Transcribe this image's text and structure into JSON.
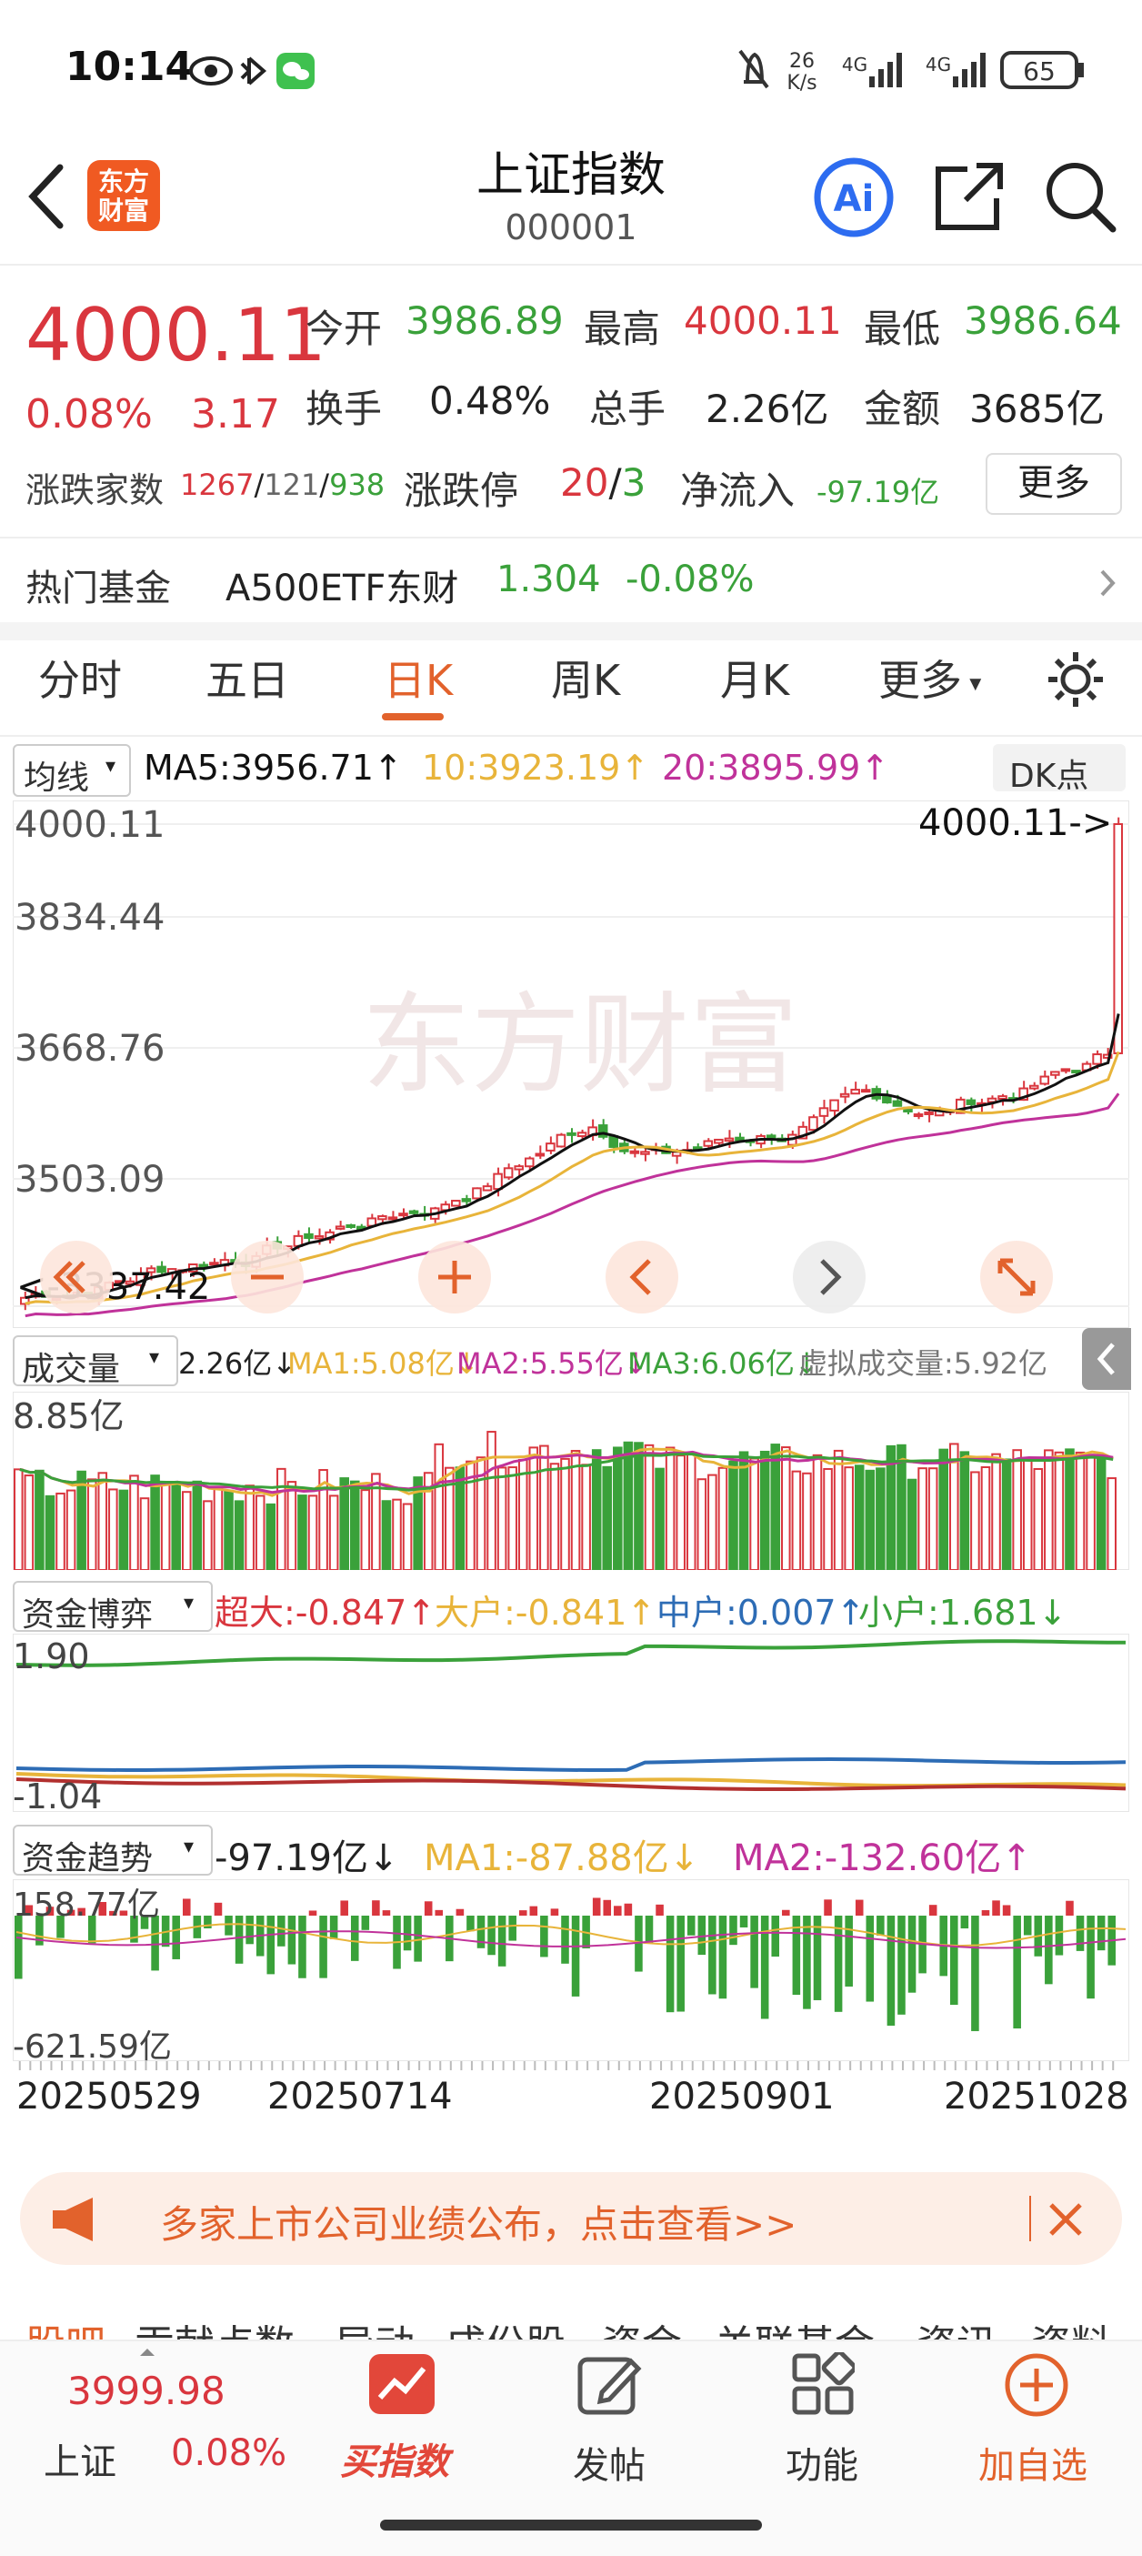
{
  "status": {
    "time": "10:14",
    "net_speed_top": "26",
    "net_speed_bottom": "K/s",
    "net1": "4G",
    "net2": "4G",
    "battery": "65"
  },
  "header": {
    "title": "上证指数",
    "code": "000001",
    "logo_top": "东方",
    "logo_bottom": "财富",
    "ai_label": "Ai"
  },
  "quote": {
    "price": "4000.11",
    "pct": "0.08%",
    "chg": "3.17",
    "open_label": "今开",
    "open": "3986.89",
    "high_label": "最高",
    "high": "4000.11",
    "low_label": "最低",
    "low": "3986.64",
    "turnover_label": "换手",
    "turnover": "0.48%",
    "volume_label": "总手",
    "volume": "2.26亿",
    "amount_label": "金额",
    "amount": "3685亿",
    "breadth_label": "涨跌家数",
    "up": "1267",
    "flat": "121",
    "down": "938",
    "limit_label": "涨跌停",
    "limit_up": "20",
    "limit_down": "3",
    "netflow_label": "净流入",
    "netflow": "-97.19亿",
    "more": "更多"
  },
  "fund": {
    "label": "热门基金",
    "name": "A500ETF东财",
    "price": "1.304",
    "change": "-0.08%"
  },
  "tabs": [
    "分时",
    "五日",
    "日K",
    "周K",
    "月K",
    "更多"
  ],
  "main_chart": {
    "ma_select": "均线",
    "ma5": "MA5:3956.71↑",
    "ma10": "10:3923.19↑",
    "ma20": "20:3895.99↑",
    "dk": "DK点",
    "y_ticks": [
      "4000.11",
      "3834.44",
      "3668.76",
      "3503.09",
      "3337.42"
    ],
    "high_marker": "4000.11->",
    "low_marker": "<-3337.42",
    "watermark": "东方财富"
  },
  "volume_chart": {
    "select": "成交量",
    "current": "2.26亿↓",
    "ma1": "MA1:5.08亿↓",
    "ma2": "MA2:5.55亿↓",
    "ma3": "MA3:6.06亿↓",
    "virtual": "虚拟成交量:5.92亿",
    "y_max": "8.85亿"
  },
  "fund_game": {
    "select": "资金博弈",
    "super": "超大:-0.847↑",
    "big": "大户:-0.841↑",
    "mid": "中户:0.007↑",
    "small": "小户:1.681↓",
    "y_max": "1.90",
    "y_min": "-1.04"
  },
  "fund_trend": {
    "select": "资金趋势",
    "current": "-97.19亿↓",
    "ma1": "MA1:-87.88亿↓",
    "ma2": "MA2:-132.60亿↑",
    "y_max": "158.77亿",
    "y_min": "-621.59亿"
  },
  "x_dates": [
    "20250529",
    "20250714",
    "20250901",
    "20251028"
  ],
  "banner": {
    "text": "多家上市公司业绩公布，点击查看>>"
  },
  "sub_tabs": [
    "股吧",
    "贡献点数",
    "异动",
    "成份股",
    "资金",
    "关联基金",
    "资讯",
    "资料"
  ],
  "bottom_nav": {
    "index_price": "3999.98",
    "index_name": "上证",
    "index_pct": "0.08%",
    "buy": "买指数",
    "post": "发帖",
    "func": "功能",
    "watch": "加自选"
  },
  "colors": {
    "up": "#d9363e",
    "down": "#3aa13a",
    "accent": "#e2622c",
    "ma5": "#111111",
    "ma10": "#e8b43a",
    "ma20": "#c0329a"
  }
}
